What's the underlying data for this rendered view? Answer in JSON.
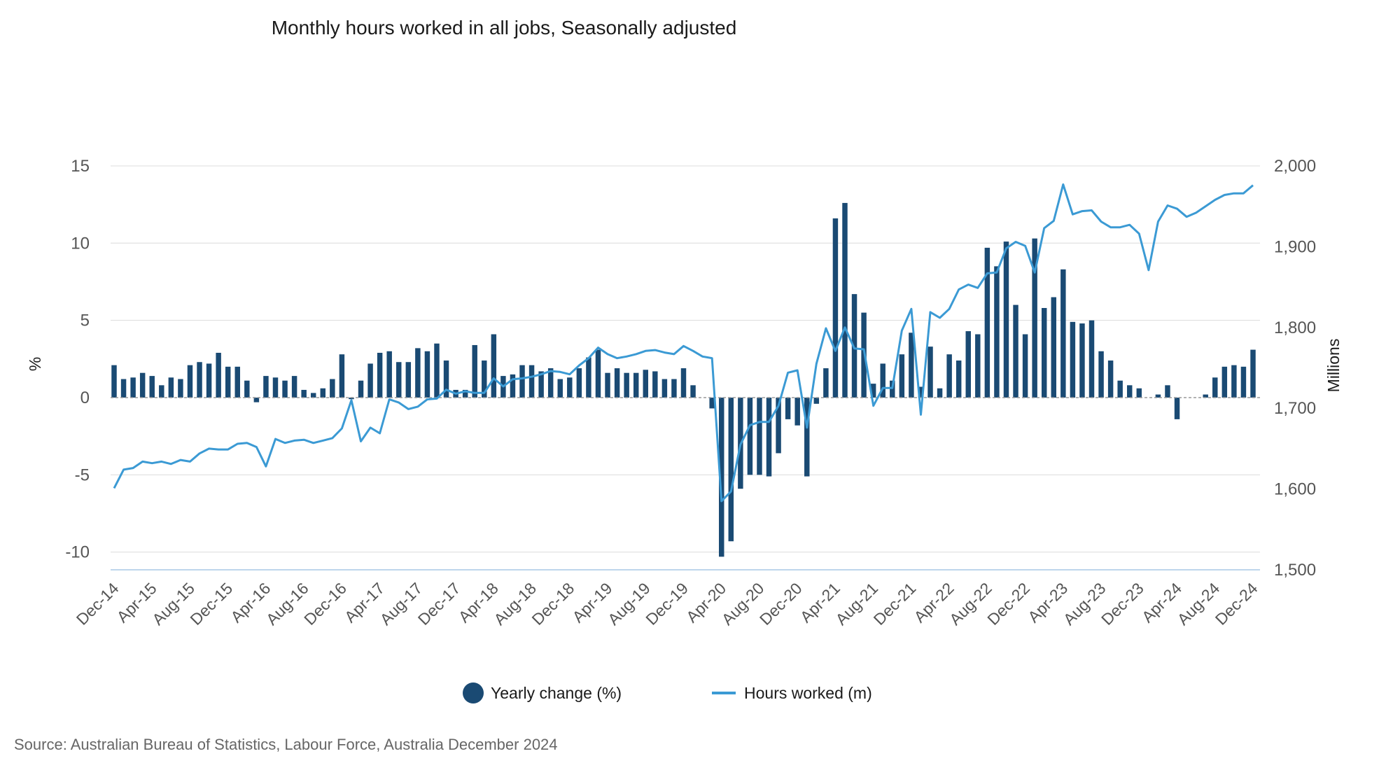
{
  "chart_data": {
    "type": "bar+line",
    "title": "Monthly hours worked in all jobs, Seasonally adjusted",
    "left_axis": {
      "label": "%",
      "range": [
        -11,
        15
      ],
      "ticks": [
        15,
        10,
        5,
        0,
        -5,
        -10
      ],
      "tick_labels": [
        "15",
        "10",
        "5",
        "0",
        "-5",
        "-10"
      ]
    },
    "right_axis": {
      "label": "Millions",
      "range": [
        1500,
        2000
      ],
      "ticks": [
        2000,
        1900,
        1800,
        1700,
        1600,
        1500
      ],
      "tick_labels": [
        "2,000",
        "1,900",
        "1,800",
        "1,700",
        "1,600",
        "1,500"
      ]
    },
    "x_tick_labels": [
      "Dec-14",
      "Apr-15",
      "Aug-15",
      "Dec-15",
      "Apr-16",
      "Aug-16",
      "Dec-16",
      "Apr-17",
      "Aug-17",
      "Dec-17",
      "Apr-18",
      "Aug-18",
      "Dec-18",
      "Apr-19",
      "Aug-19",
      "Dec-19",
      "Apr-20",
      "Aug-20",
      "Dec-20",
      "Apr-21",
      "Aug-21",
      "Dec-21",
      "Apr-22",
      "Aug-22",
      "Dec-22",
      "Apr-23",
      "Aug-23",
      "Dec-23",
      "Apr-24",
      "Aug-24",
      "Dec-24"
    ],
    "months_count": 121,
    "series": [
      {
        "name": "Yearly change (%)",
        "type": "bar",
        "axis": "left",
        "color": "#1a4a73",
        "values": [
          2.1,
          1.2,
          1.3,
          1.6,
          1.4,
          0.8,
          1.3,
          1.2,
          2.1,
          2.3,
          2.2,
          2.9,
          2.0,
          2.0,
          1.1,
          -0.3,
          1.4,
          1.3,
          1.1,
          1.4,
          0.5,
          0.3,
          0.6,
          1.2,
          2.8,
          -0.1,
          1.1,
          2.2,
          2.9,
          3.0,
          2.3,
          2.3,
          3.2,
          3.0,
          3.5,
          2.4,
          0.5,
          0.5,
          3.4,
          2.4,
          4.1,
          1.4,
          1.5,
          2.1,
          2.1,
          1.7,
          1.9,
          1.2,
          1.3,
          1.9,
          2.6,
          3.1,
          1.6,
          1.9,
          1.6,
          1.6,
          1.8,
          1.7,
          1.2,
          1.2,
          1.9,
          0.8,
          0.0,
          -0.7,
          -10.3,
          -9.3,
          -5.9,
          -5.0,
          -5.0,
          -5.1,
          -3.6,
          -1.4,
          -1.8,
          -5.1,
          -0.4,
          1.9,
          11.6,
          12.6,
          6.7,
          5.5,
          0.9,
          2.2,
          1.1,
          2.8,
          4.2,
          0.7,
          3.3,
          0.6,
          2.8,
          2.4,
          4.3,
          4.1,
          9.7,
          8.5,
          10.1,
          6.0,
          4.1,
          10.3,
          5.8,
          6.5,
          8.3,
          4.9,
          4.8,
          5.0,
          3.0,
          2.4,
          1.1,
          0.8,
          0.6,
          0.0,
          0.2,
          0.8,
          -1.4,
          0.0,
          0.0,
          0.2,
          1.3,
          2.0,
          2.1,
          2.0,
          3.1
        ]
      },
      {
        "name": "Hours worked (m)",
        "type": "line",
        "axis": "right",
        "color": "#3b9ad4",
        "values": [
          1601,
          1624,
          1626,
          1634,
          1632,
          1634,
          1631,
          1636,
          1634,
          1644,
          1650,
          1649,
          1649,
          1656,
          1657,
          1652,
          1628,
          1662,
          1657,
          1660,
          1661,
          1657,
          1660,
          1663,
          1675,
          1710,
          1659,
          1676,
          1669,
          1711,
          1707,
          1699,
          1702,
          1711,
          1712,
          1723,
          1718,
          1721,
          1719,
          1719,
          1737,
          1727,
          1736,
          1737,
          1739,
          1742,
          1746,
          1745,
          1742,
          1753,
          1762,
          1775,
          1767,
          1762,
          1764,
          1767,
          1771,
          1772,
          1769,
          1767,
          1777,
          1771,
          1764,
          1762,
          1585,
          1597,
          1655,
          1679,
          1683,
          1683,
          1703,
          1744,
          1747,
          1676,
          1755,
          1799,
          1771,
          1800,
          1774,
          1773,
          1703,
          1725,
          1725,
          1796,
          1823,
          1692,
          1819,
          1812,
          1823,
          1847,
          1853,
          1849,
          1867,
          1868,
          1898,
          1906,
          1901,
          1868,
          1923,
          1932,
          1977,
          1940,
          1944,
          1945,
          1931,
          1924,
          1924,
          1927,
          1916,
          1871,
          1931,
          1951,
          1947,
          1937,
          1942,
          1950,
          1958,
          1964,
          1966,
          1966,
          1976
        ]
      }
    ],
    "legend": [
      {
        "label": "Yearly change (%)",
        "marker": "circle",
        "color": "#1a4a73"
      },
      {
        "label": "Hours worked (m)",
        "marker": "line",
        "color": "#3b9ad4"
      }
    ],
    "legend_position": "bottom-center",
    "gridlines": true
  },
  "source": "Source: Australian Bureau of Statistics, Labour Force, Australia December 2024"
}
